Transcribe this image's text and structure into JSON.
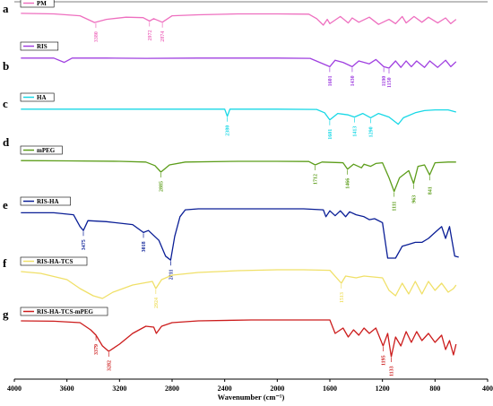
{
  "chart_data": {
    "type": "line",
    "xlabel": "Wavenumber (cm⁻¹)",
    "xlim": [
      4000,
      400
    ],
    "x_ticks": [
      "4000",
      "3600",
      "3200",
      "2800",
      "2400",
      "2000",
      "1600",
      "1200",
      "800",
      "400"
    ],
    "grid": false,
    "legend": "per-panel, top-left",
    "series": [
      {
        "panel": "a",
        "name": "PM",
        "color": "#ee6fbf",
        "points": [
          [
            3950,
            0.18
          ],
          [
            3700,
            0.22
          ],
          [
            3500,
            0.35
          ],
          [
            3390,
            0.82
          ],
          [
            3300,
            0.6
          ],
          [
            3150,
            0.45
          ],
          [
            3020,
            0.48
          ],
          [
            2972,
            0.72
          ],
          [
            2940,
            0.55
          ],
          [
            2874,
            0.8
          ],
          [
            2800,
            0.35
          ],
          [
            2600,
            0.28
          ],
          [
            2300,
            0.22
          ],
          [
            2000,
            0.22
          ],
          [
            1760,
            0.24
          ],
          [
            1700,
            0.55
          ],
          [
            1650,
            1.0
          ],
          [
            1620,
            0.6
          ],
          [
            1600,
            0.9
          ],
          [
            1520,
            0.4
          ],
          [
            1460,
            0.85
          ],
          [
            1430,
            0.5
          ],
          [
            1380,
            0.8
          ],
          [
            1300,
            0.45
          ],
          [
            1230,
            0.95
          ],
          [
            1150,
            0.6
          ],
          [
            1100,
            0.9
          ],
          [
            1050,
            0.4
          ],
          [
            1020,
            0.85
          ],
          [
            960,
            0.4
          ],
          [
            900,
            0.8
          ],
          [
            850,
            0.45
          ],
          [
            780,
            0.85
          ],
          [
            720,
            0.5
          ],
          [
            680,
            0.9
          ],
          [
            640,
            0.6
          ]
        ],
        "peaks": [
          {
            "x": 3380,
            "label": "3380"
          },
          {
            "x": 2972,
            "label": "2972"
          },
          {
            "x": 2874,
            "label": "2874"
          }
        ]
      },
      {
        "panel": "b",
        "name": "RIS",
        "color": "#a040e0",
        "points": [
          [
            3950,
            0.3
          ],
          [
            3700,
            0.3
          ],
          [
            3620,
            0.6
          ],
          [
            3560,
            0.3
          ],
          [
            3300,
            0.3
          ],
          [
            3000,
            0.32
          ],
          [
            2600,
            0.3
          ],
          [
            2000,
            0.3
          ],
          [
            1750,
            0.32
          ],
          [
            1601,
            0.9
          ],
          [
            1560,
            0.45
          ],
          [
            1500,
            0.6
          ],
          [
            1430,
            0.9
          ],
          [
            1380,
            0.5
          ],
          [
            1300,
            0.7
          ],
          [
            1250,
            0.4
          ],
          [
            1190,
            0.9
          ],
          [
            1150,
            1.0
          ],
          [
            1100,
            0.5
          ],
          [
            1060,
            0.95
          ],
          [
            1020,
            0.5
          ],
          [
            980,
            0.9
          ],
          [
            940,
            0.5
          ],
          [
            880,
            0.95
          ],
          [
            840,
            0.5
          ],
          [
            780,
            0.95
          ],
          [
            720,
            0.45
          ],
          [
            680,
            0.9
          ],
          [
            640,
            0.55
          ]
        ],
        "peaks": [
          {
            "x": 1601,
            "label": "1601"
          },
          {
            "x": 1430,
            "label": "1430"
          },
          {
            "x": 1190,
            "label": "1190"
          },
          {
            "x": 1150,
            "label": "1150"
          }
        ]
      },
      {
        "panel": "c",
        "name": "HA",
        "color": "#18d8e6",
        "points": [
          [
            3950,
            0.3
          ],
          [
            3500,
            0.3
          ],
          [
            3000,
            0.3
          ],
          [
            2600,
            0.3
          ],
          [
            2400,
            0.3
          ],
          [
            2380,
            0.8
          ],
          [
            2360,
            0.3
          ],
          [
            2000,
            0.3
          ],
          [
            1700,
            0.32
          ],
          [
            1640,
            0.55
          ],
          [
            1601,
            1.05
          ],
          [
            1540,
            0.6
          ],
          [
            1460,
            0.7
          ],
          [
            1413,
            0.85
          ],
          [
            1350,
            0.6
          ],
          [
            1290,
            0.9
          ],
          [
            1230,
            0.6
          ],
          [
            1150,
            0.85
          ],
          [
            1080,
            1.35
          ],
          [
            1040,
            0.9
          ],
          [
            950,
            0.55
          ],
          [
            880,
            0.4
          ],
          [
            800,
            0.35
          ],
          [
            700,
            0.35
          ],
          [
            640,
            0.5
          ]
        ],
        "peaks": [
          {
            "x": 2380,
            "label": "2380"
          },
          {
            "x": 1601,
            "label": "1601"
          },
          {
            "x": 1413,
            "label": "1413"
          },
          {
            "x": 1290,
            "label": "1290"
          }
        ]
      },
      {
        "panel": "d",
        "name": "mPEG",
        "color": "#5c9d1a",
        "points": [
          [
            3950,
            0.2
          ],
          [
            3600,
            0.22
          ],
          [
            3200,
            0.25
          ],
          [
            3000,
            0.3
          ],
          [
            2930,
            0.55
          ],
          [
            2885,
            1.0
          ],
          [
            2820,
            0.5
          ],
          [
            2700,
            0.3
          ],
          [
            2300,
            0.25
          ],
          [
            2000,
            0.25
          ],
          [
            1760,
            0.26
          ],
          [
            1712,
            0.5
          ],
          [
            1660,
            0.3
          ],
          [
            1500,
            0.35
          ],
          [
            1466,
            0.8
          ],
          [
            1420,
            0.45
          ],
          [
            1360,
            0.7
          ],
          [
            1340,
            0.45
          ],
          [
            1290,
            0.6
          ],
          [
            1250,
            0.4
          ],
          [
            1200,
            0.35
          ],
          [
            1150,
            1.4
          ],
          [
            1111,
            2.35
          ],
          [
            1070,
            1.4
          ],
          [
            1000,
            0.9
          ],
          [
            963,
            1.8
          ],
          [
            930,
            0.6
          ],
          [
            880,
            0.5
          ],
          [
            841,
            1.2
          ],
          [
            800,
            0.35
          ],
          [
            700,
            0.3
          ],
          [
            640,
            0.3
          ]
        ],
        "peaks": [
          {
            "x": 2885,
            "label": "2885"
          },
          {
            "x": 1712,
            "label": "1712"
          },
          {
            "x": 1466,
            "label": "1466"
          },
          {
            "x": 1111,
            "label": "1111"
          },
          {
            "x": 963,
            "label": "963"
          },
          {
            "x": 841,
            "label": "841"
          }
        ]
      },
      {
        "panel": "e",
        "name": "RIS-HA",
        "color": "#0a1e96",
        "points": [
          [
            3950,
            0.2
          ],
          [
            3700,
            0.2
          ],
          [
            3550,
            0.3
          ],
          [
            3500,
            0.9
          ],
          [
            3475,
            1.1
          ],
          [
            3440,
            0.6
          ],
          [
            3300,
            0.65
          ],
          [
            3100,
            0.8
          ],
          [
            3018,
            1.2
          ],
          [
            2980,
            1.1
          ],
          [
            2900,
            1.6
          ],
          [
            2850,
            2.4
          ],
          [
            2811,
            2.6
          ],
          [
            2780,
            1.4
          ],
          [
            2740,
            0.4
          ],
          [
            2700,
            0.05
          ],
          [
            2600,
            0.0
          ],
          [
            2200,
            0.0
          ],
          [
            1800,
            0.0
          ],
          [
            1650,
            0.05
          ],
          [
            1630,
            0.4
          ],
          [
            1600,
            0.1
          ],
          [
            1560,
            0.35
          ],
          [
            1520,
            0.1
          ],
          [
            1480,
            0.4
          ],
          [
            1450,
            0.15
          ],
          [
            1400,
            0.3
          ],
          [
            1340,
            0.4
          ],
          [
            1300,
            0.55
          ],
          [
            1260,
            0.5
          ],
          [
            1200,
            0.7
          ],
          [
            1180,
            1.6
          ],
          [
            1160,
            2.5
          ],
          [
            1100,
            2.5
          ],
          [
            1050,
            1.9
          ],
          [
            1000,
            1.8
          ],
          [
            950,
            1.7
          ],
          [
            900,
            1.7
          ],
          [
            850,
            1.5
          ],
          [
            800,
            1.2
          ],
          [
            750,
            0.9
          ],
          [
            720,
            1.5
          ],
          [
            690,
            0.9
          ],
          [
            650,
            2.4
          ],
          [
            620,
            2.45
          ]
        ],
        "peaks": [
          {
            "x": 3475,
            "label": "3475"
          },
          {
            "x": 3018,
            "label": "3018"
          },
          {
            "x": 2811,
            "label": "2811"
          }
        ]
      },
      {
        "panel": "f",
        "name": "RIS-HA-TCS",
        "color": "#f0e068",
        "points": [
          [
            3950,
            0.15
          ],
          [
            3800,
            0.25
          ],
          [
            3600,
            0.6
          ],
          [
            3500,
            1.1
          ],
          [
            3400,
            1.5
          ],
          [
            3330,
            1.65
          ],
          [
            3250,
            1.3
          ],
          [
            3100,
            0.9
          ],
          [
            2950,
            0.7
          ],
          [
            2924,
            1.1
          ],
          [
            2880,
            0.6
          ],
          [
            2800,
            0.35
          ],
          [
            2600,
            0.2
          ],
          [
            2300,
            0.1
          ],
          [
            2000,
            0.05
          ],
          [
            1800,
            0.05
          ],
          [
            1600,
            0.08
          ],
          [
            1513,
            0.8
          ],
          [
            1480,
            0.4
          ],
          [
            1400,
            0.5
          ],
          [
            1340,
            0.4
          ],
          [
            1200,
            0.5
          ],
          [
            1150,
            1.2
          ],
          [
            1100,
            1.5
          ],
          [
            1050,
            0.8
          ],
          [
            1000,
            1.4
          ],
          [
            950,
            0.7
          ],
          [
            900,
            1.4
          ],
          [
            850,
            0.7
          ],
          [
            800,
            1.2
          ],
          [
            750,
            0.8
          ],
          [
            700,
            1.3
          ],
          [
            660,
            1.1
          ],
          [
            640,
            0.9
          ]
        ],
        "peaks": [
          {
            "x": 2924,
            "label": "2924"
          },
          {
            "x": 1513,
            "label": "1513"
          }
        ]
      },
      {
        "panel": "g",
        "name": "RIS-HA-TCS-mPEG",
        "color": "#cc1c1c",
        "points": [
          [
            3950,
            0.1
          ],
          [
            3700,
            0.12
          ],
          [
            3500,
            0.2
          ],
          [
            3420,
            0.6
          ],
          [
            3379,
            0.9
          ],
          [
            3330,
            1.5
          ],
          [
            3282,
            1.8
          ],
          [
            3200,
            1.4
          ],
          [
            3100,
            0.8
          ],
          [
            3000,
            0.4
          ],
          [
            2940,
            0.45
          ],
          [
            2920,
            0.8
          ],
          [
            2880,
            0.4
          ],
          [
            2800,
            0.2
          ],
          [
            2600,
            0.1
          ],
          [
            2200,
            0.05
          ],
          [
            1800,
            0.05
          ],
          [
            1600,
            0.05
          ],
          [
            1560,
            0.8
          ],
          [
            1500,
            0.5
          ],
          [
            1460,
            1.0
          ],
          [
            1420,
            0.6
          ],
          [
            1380,
            0.9
          ],
          [
            1340,
            0.5
          ],
          [
            1300,
            0.8
          ],
          [
            1250,
            0.5
          ],
          [
            1195,
            1.5
          ],
          [
            1160,
            0.8
          ],
          [
            1133,
            2.1
          ],
          [
            1100,
            1.0
          ],
          [
            1060,
            1.5
          ],
          [
            1020,
            0.7
          ],
          [
            980,
            1.3
          ],
          [
            940,
            0.7
          ],
          [
            900,
            1.2
          ],
          [
            850,
            0.8
          ],
          [
            800,
            1.3
          ],
          [
            750,
            0.9
          ],
          [
            720,
            1.7
          ],
          [
            690,
            1.2
          ],
          [
            660,
            2.0
          ],
          [
            640,
            1.4
          ]
        ],
        "peaks": [
          {
            "x": 3379,
            "label": "3379"
          },
          {
            "x": 3282,
            "label": "3282"
          },
          {
            "x": 1195,
            "label": "1195"
          },
          {
            "x": 1133,
            "label": "1133"
          }
        ]
      }
    ]
  }
}
